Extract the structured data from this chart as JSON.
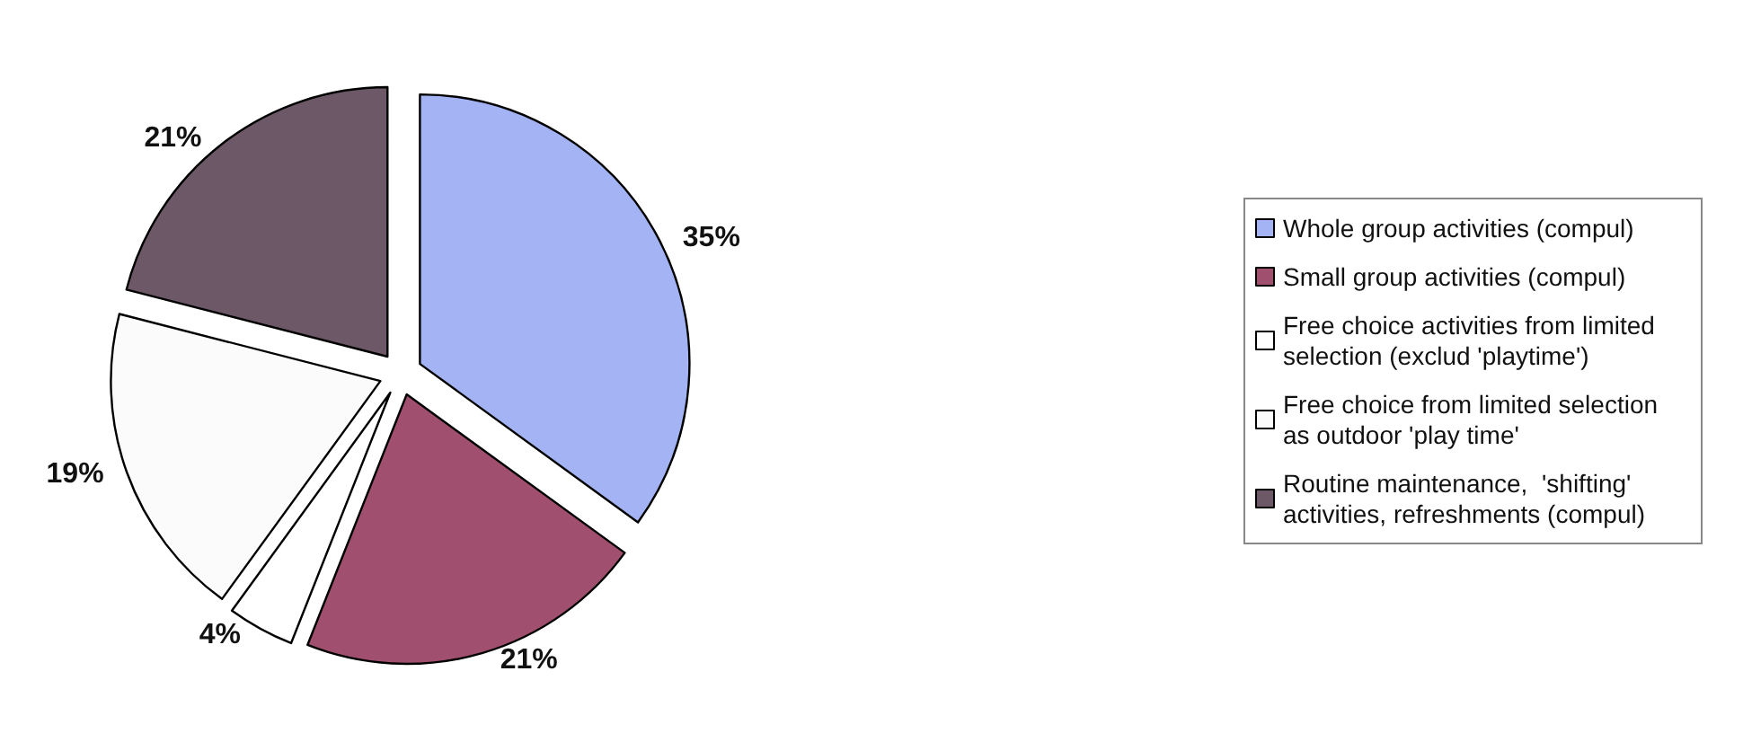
{
  "chart_data": {
    "type": "pie",
    "categories": [
      "Whole group activities (compul)",
      "Small group activities (compul)",
      "Free choice activities from limited selection (exclud 'playtime')",
      "Free choice from limited selection as outdoor 'play time'",
      "Routine maintenance,  'shifting' activities, refreshments (compul)"
    ],
    "values": [
      35,
      21,
      4,
      19,
      21
    ],
    "value_labels": [
      "35%",
      "21%",
      "4%",
      "19%",
      "21%"
    ],
    "colors": [
      "#a3b3f3",
      "#a0506e",
      "#ffffff",
      "#fbfbfb",
      "#6c5866"
    ],
    "legend": "right"
  }
}
